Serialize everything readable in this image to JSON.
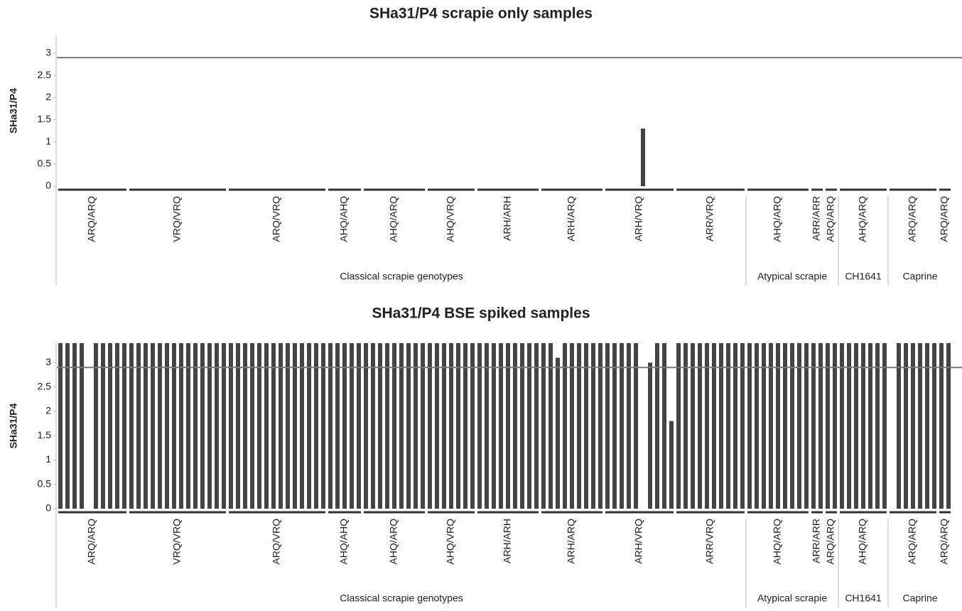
{
  "chart_data": [
    {
      "type": "bar",
      "title": "SHa31/P4 scrapie only samples",
      "y_label": "SHa31/P4",
      "color": "#444444",
      "ylim": [
        0,
        3.4
      ],
      "yticks": [
        0,
        0.5,
        1,
        1.5,
        2,
        2.5,
        3
      ],
      "threshold": 2.9,
      "supergroups": [
        {
          "label": "Classical scrapie genotypes",
          "groups": [
            {
              "label": "ARQ/ARQ",
              "values": [
                0,
                0,
                0,
                0,
                0,
                0,
                0,
                0,
                0,
                0
              ]
            },
            {
              "label": "VRQ/VRQ",
              "values": [
                0,
                0,
                0,
                0,
                0,
                0,
                0,
                0,
                0,
                0,
                0,
                0,
                0,
                0
              ]
            },
            {
              "label": "ARQ/VRQ",
              "values": [
                0,
                0,
                0,
                0,
                0,
                0,
                0,
                0,
                0,
                0,
                0,
                0,
                0,
                0
              ]
            },
            {
              "label": "AHQ/AHQ",
              "values": [
                0,
                0,
                0,
                0,
                0
              ]
            },
            {
              "label": "AHQ/ARQ",
              "values": [
                0,
                0,
                0,
                0,
                0,
                0,
                0,
                0,
                0
              ]
            },
            {
              "label": "AHQ/VRQ",
              "values": [
                0,
                0,
                0,
                0,
                0,
                0,
                0
              ]
            },
            {
              "label": "ARH/ARH",
              "values": [
                0,
                0,
                0,
                0,
                0,
                0,
                0,
                0,
                0
              ]
            },
            {
              "label": "ARH/ARQ",
              "values": [
                0,
                0,
                0,
                0,
                0,
                0,
                0,
                0,
                0
              ]
            },
            {
              "label": "ARH/VRQ",
              "values": [
                0,
                0,
                0,
                0,
                0,
                1.3,
                0,
                0,
                0,
                0
              ]
            },
            {
              "label": "ARR/VRQ",
              "values": [
                0,
                0,
                0,
                0,
                0,
                0,
                0,
                0,
                0,
                0
              ]
            }
          ]
        },
        {
          "label": "Atypical scrapie",
          "groups": [
            {
              "label": "AHQ/ARQ",
              "values": [
                0,
                0,
                0,
                0,
                0,
                0,
                0,
                0,
                0
              ]
            },
            {
              "label": "ARR/ARR",
              "values": [
                0,
                0
              ]
            },
            {
              "label": "ARQ/ARQ",
              "values": [
                0,
                0
              ]
            }
          ]
        },
        {
          "label": "CH1641",
          "groups": [
            {
              "label": "AHQ/ARQ",
              "values": [
                0,
                0,
                0,
                0,
                0,
                0,
                0
              ]
            }
          ]
        },
        {
          "label": "Caprine",
          "groups": [
            {
              "label": "ARQ/ARQ",
              "values": [
                0,
                0,
                0,
                0,
                0,
                0,
                0
              ]
            },
            {
              "label": "ARQ/ARQ",
              "values": [
                0,
                0
              ]
            }
          ]
        }
      ]
    },
    {
      "type": "bar",
      "title": "SHa31/P4 BSE spiked samples",
      "y_label": "SHa31/P4",
      "color": "#444444",
      "ylim": [
        0,
        3.4
      ],
      "yticks": [
        0,
        0.5,
        1,
        1.5,
        2,
        2.5,
        3
      ],
      "threshold": 2.9,
      "supergroups": [
        {
          "label": "Classical scrapie genotypes",
          "groups": [
            {
              "label": "ARQ/ARQ",
              "values": [
                3.4,
                3.4,
                3.4,
                3.4,
                0,
                3.4,
                3.4,
                3.4,
                3.4,
                3.4
              ]
            },
            {
              "label": "VRQ/VRQ",
              "values": [
                3.4,
                3.4,
                3.4,
                3.4,
                3.4,
                3.4,
                3.4,
                3.4,
                3.4,
                3.4,
                3.4,
                3.4,
                3.4,
                3.4
              ]
            },
            {
              "label": "ARQ/VRQ",
              "values": [
                3.4,
                3.4,
                3.4,
                3.4,
                3.4,
                3.4,
                3.4,
                3.4,
                3.4,
                3.4,
                3.4,
                3.4,
                3.4,
                3.4
              ]
            },
            {
              "label": "AHQ/AHQ",
              "values": [
                3.4,
                3.4,
                3.4,
                3.4,
                3.4
              ]
            },
            {
              "label": "AHQ/ARQ",
              "values": [
                3.4,
                3.4,
                3.4,
                3.4,
                3.4,
                3.4,
                3.4,
                3.4,
                3.4
              ]
            },
            {
              "label": "AHQ/VRQ",
              "values": [
                3.4,
                3.4,
                3.4,
                3.4,
                3.4,
                3.4,
                3.4
              ]
            },
            {
              "label": "ARH/ARH",
              "values": [
                3.4,
                3.4,
                3.4,
                3.4,
                3.4,
                3.4,
                3.4,
                3.4,
                3.4
              ]
            },
            {
              "label": "ARH/ARQ",
              "values": [
                3.4,
                3.4,
                3.1,
                3.4,
                3.4,
                3.4,
                3.4,
                3.4,
                3.4
              ]
            },
            {
              "label": "ARH/VRQ",
              "values": [
                3.4,
                3.4,
                3.4,
                3.4,
                3.4,
                0,
                3.0,
                3.4,
                3.4,
                1.8
              ]
            },
            {
              "label": "ARR/VRQ",
              "values": [
                3.4,
                3.4,
                3.4,
                3.4,
                3.4,
                3.4,
                3.4,
                3.4,
                3.4,
                3.4
              ]
            }
          ]
        },
        {
          "label": "Atypical scrapie",
          "groups": [
            {
              "label": "AHQ/ARQ",
              "values": [
                3.4,
                3.4,
                3.4,
                3.4,
                3.4,
                3.4,
                3.4,
                3.4,
                3.4
              ]
            },
            {
              "label": "ARR/ARR",
              "values": [
                3.4,
                3.4
              ]
            },
            {
              "label": "ARQ/ARQ",
              "values": [
                3.4,
                3.4
              ]
            }
          ]
        },
        {
          "label": "CH1641",
          "groups": [
            {
              "label": "AHQ/ARQ",
              "values": [
                3.4,
                3.4,
                3.4,
                3.4,
                3.4,
                3.4,
                3.4
              ]
            }
          ]
        },
        {
          "label": "Caprine",
          "groups": [
            {
              "label": "ARQ/ARQ",
              "values": [
                0,
                3.4,
                3.4,
                3.4,
                3.4,
                3.4,
                3.4
              ]
            },
            {
              "label": "ARQ/ARQ",
              "values": [
                3.4,
                3.4
              ]
            }
          ]
        }
      ]
    }
  ]
}
